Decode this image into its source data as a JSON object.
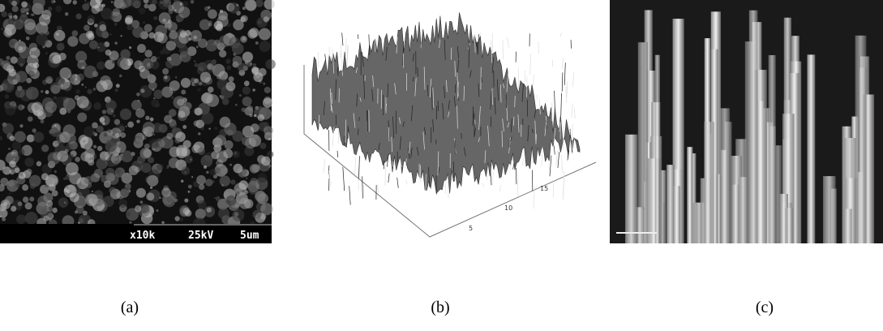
{
  "panels": [
    {
      "label": "(a)",
      "scale_bar": [
        "x10k",
        "25kV",
        "5um"
      ]
    },
    {
      "label": "(b)",
      "axis_ticks": [
        "5",
        "10",
        "15"
      ]
    },
    {
      "label": "(c)"
    }
  ]
}
